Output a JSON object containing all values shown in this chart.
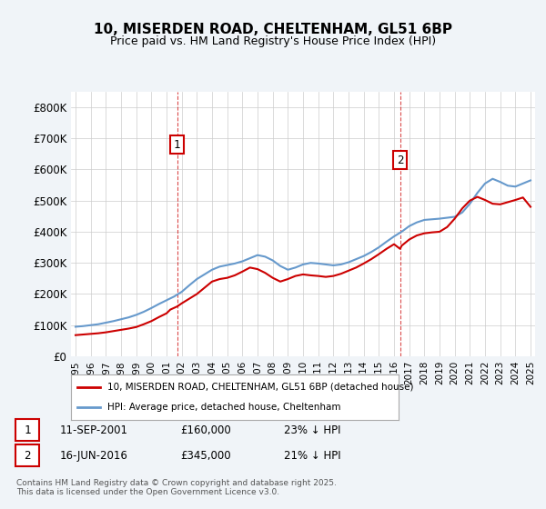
{
  "title": "10, MISERDEN ROAD, CHELTENHAM, GL51 6BP",
  "subtitle": "Price paid vs. HM Land Registry's House Price Index (HPI)",
  "footer": "Contains HM Land Registry data © Crown copyright and database right 2025.\nThis data is licensed under the Open Government Licence v3.0.",
  "legend_house": "10, MISERDEN ROAD, CHELTENHAM, GL51 6BP (detached house)",
  "legend_hpi": "HPI: Average price, detached house, Cheltenham",
  "annotation1_label": "1",
  "annotation1_date": "11-SEP-2001",
  "annotation1_price": "£160,000",
  "annotation1_hpi": "23% ↓ HPI",
  "annotation2_label": "2",
  "annotation2_date": "16-JUN-2016",
  "annotation2_price": "£345,000",
  "annotation2_hpi": "21% ↓ HPI",
  "line_color_house": "#cc0000",
  "line_color_hpi": "#6699cc",
  "annotation_color": "#cc0000",
  "background_color": "#f0f4f8",
  "plot_bg_color": "#ffffff",
  "grid_color": "#cccccc",
  "ylim": [
    0,
    850000
  ],
  "yticks": [
    0,
    100000,
    200000,
    300000,
    400000,
    500000,
    600000,
    700000,
    800000
  ],
  "ytick_labels": [
    "£0",
    "£100K",
    "£200K",
    "£300K",
    "£400K",
    "£500K",
    "£600K",
    "£700K",
    "£800K"
  ],
  "year_start": 1995,
  "year_end": 2025,
  "hpi_years": [
    1995,
    1995.5,
    1996,
    1996.5,
    1997,
    1997.5,
    1998,
    1998.5,
    1999,
    1999.5,
    2000,
    2000.5,
    2001,
    2001.5,
    2002,
    2002.5,
    2003,
    2003.5,
    2004,
    2004.5,
    2005,
    2005.5,
    2006,
    2006.5,
    2007,
    2007.5,
    2008,
    2008.5,
    2009,
    2009.5,
    2010,
    2010.5,
    2011,
    2011.5,
    2012,
    2012.5,
    2013,
    2013.5,
    2014,
    2014.5,
    2015,
    2015.5,
    2016,
    2016.5,
    2017,
    2017.5,
    2018,
    2018.5,
    2019,
    2019.5,
    2020,
    2020.5,
    2021,
    2021.5,
    2022,
    2022.5,
    2023,
    2023.5,
    2024,
    2024.5,
    2025
  ],
  "hpi_values": [
    95000,
    97000,
    100000,
    103000,
    108000,
    113000,
    119000,
    125000,
    133000,
    143000,
    155000,
    168000,
    180000,
    192000,
    207000,
    228000,
    248000,
    263000,
    278000,
    288000,
    293000,
    298000,
    305000,
    315000,
    325000,
    320000,
    308000,
    290000,
    278000,
    285000,
    295000,
    300000,
    298000,
    295000,
    292000,
    295000,
    302000,
    312000,
    322000,
    335000,
    350000,
    368000,
    385000,
    400000,
    418000,
    430000,
    438000,
    440000,
    442000,
    445000,
    448000,
    462000,
    490000,
    525000,
    555000,
    570000,
    560000,
    548000,
    545000,
    555000,
    565000
  ],
  "house_years": [
    1995,
    1995.5,
    1996,
    1996.5,
    1997,
    1997.5,
    1998,
    1998.5,
    1999,
    1999.5,
    2000,
    2000.5,
    2001,
    2001.25,
    2001.7,
    2002,
    2002.5,
    2003,
    2003.5,
    2004,
    2004.5,
    2005,
    2005.5,
    2006,
    2006.5,
    2007,
    2007.5,
    2008,
    2008.5,
    2009,
    2009.5,
    2010,
    2010.5,
    2011,
    2011.5,
    2012,
    2012.5,
    2013,
    2013.5,
    2014,
    2014.5,
    2015,
    2015.5,
    2016,
    2016.4,
    2016.5,
    2017,
    2017.5,
    2018,
    2018.5,
    2019,
    2019.5,
    2020,
    2020.5,
    2021,
    2021.5,
    2022,
    2022.5,
    2023,
    2023.5,
    2024,
    2024.5,
    2025
  ],
  "house_values": [
    68000,
    70000,
    72000,
    74000,
    77000,
    81000,
    85000,
    89000,
    94000,
    103000,
    113000,
    126000,
    138000,
    150000,
    160000,
    170000,
    185000,
    200000,
    220000,
    240000,
    248000,
    252000,
    260000,
    272000,
    285000,
    280000,
    268000,
    252000,
    240000,
    248000,
    258000,
    263000,
    260000,
    258000,
    255000,
    258000,
    265000,
    275000,
    285000,
    298000,
    312000,
    328000,
    345000,
    360000,
    345000,
    355000,
    375000,
    388000,
    395000,
    398000,
    400000,
    415000,
    442000,
    475000,
    500000,
    512000,
    502000,
    490000,
    488000,
    495000,
    502000,
    510000,
    480000
  ]
}
